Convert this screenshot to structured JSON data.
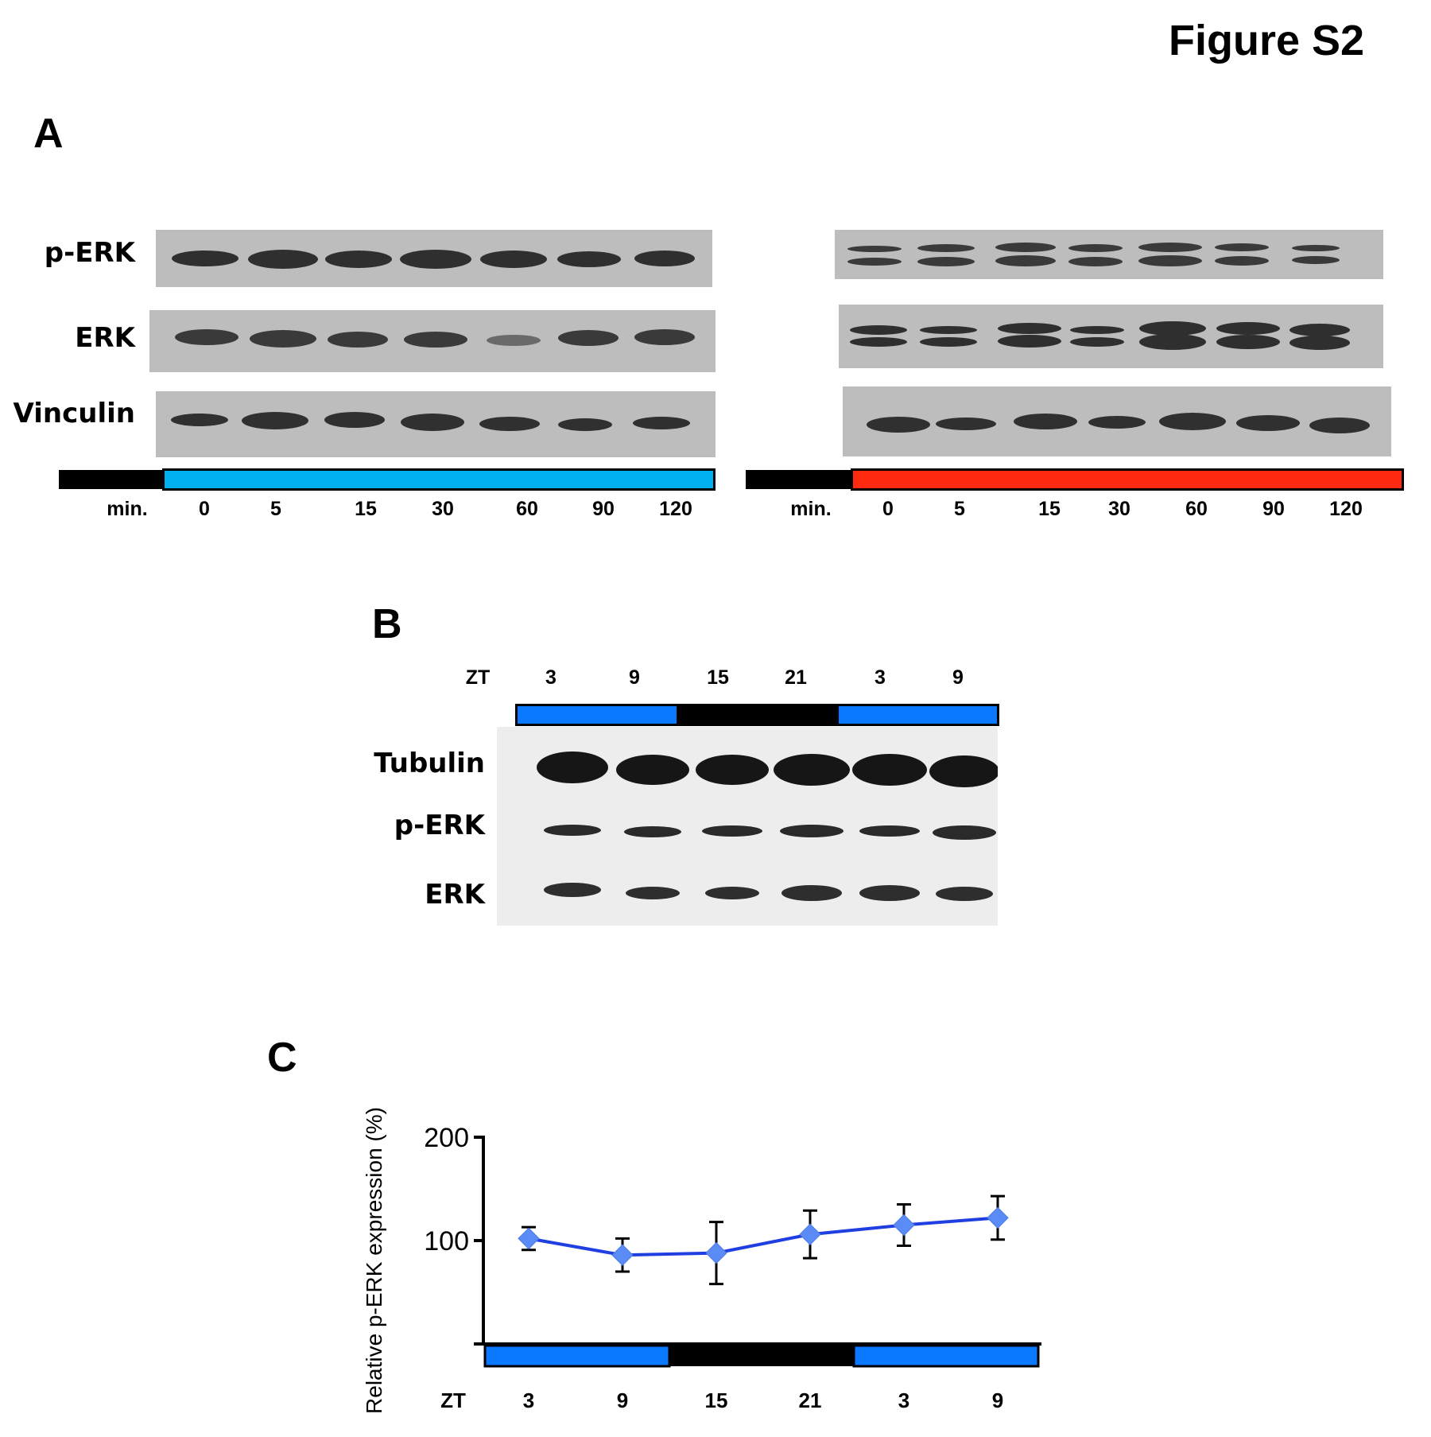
{
  "figure_title": "Figure S2",
  "panel_a": {
    "letter": "A",
    "row_labels": [
      "p-ERK",
      "ERK",
      "Vinculin"
    ],
    "time_label": "min.",
    "time_points": [
      "0",
      "5",
      "15",
      "30",
      "60",
      "90",
      "120"
    ],
    "left_bar_color": "#00b0f0",
    "right_bar_color": "#ff2a10"
  },
  "panel_b": {
    "letter": "B",
    "zt_label": "ZT",
    "zt_values": [
      "3",
      "9",
      "15",
      "21",
      "3",
      "9"
    ],
    "row_labels": [
      "Tubulin",
      "p-ERK",
      "ERK"
    ],
    "light_color": "#0a78ff"
  },
  "panel_c": {
    "letter": "C",
    "zt_label": "ZT",
    "chart_data": {
      "type": "line",
      "categories": [
        "3",
        "9",
        "15",
        "21",
        "3",
        "9"
      ],
      "series": [
        {
          "values": [
            102,
            86,
            88,
            106,
            115,
            122
          ],
          "errors": [
            11,
            16,
            30,
            23,
            20,
            21
          ],
          "color": "#1f3fe0",
          "marker_color": "#5b8cf5"
        }
      ],
      "ylabel": "Relative p-ERK expression (%)",
      "yticks": [
        100,
        200
      ],
      "ylim": [
        0,
        200
      ],
      "xlabel": "ZT"
    }
  }
}
